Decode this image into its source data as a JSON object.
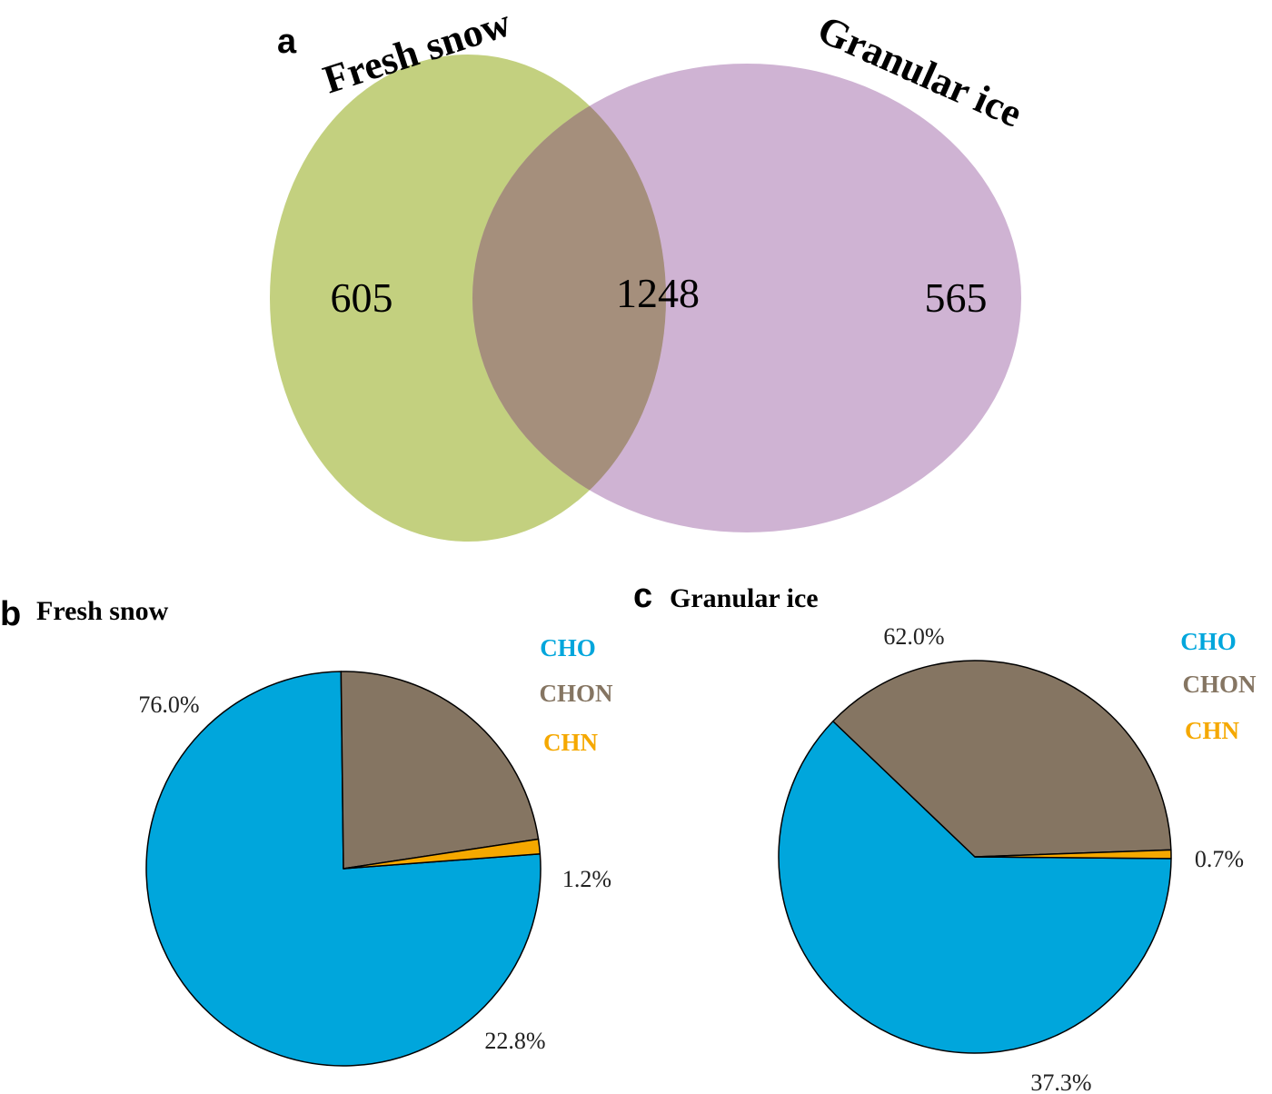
{
  "chart_data": [
    {
      "type": "venn",
      "panel": "a",
      "sets": [
        {
          "name": "Fresh snow",
          "color": "#b4c45f",
          "only": 605
        },
        {
          "name": "Granular ice",
          "color": "#c3a0c8",
          "only": 565
        }
      ],
      "intersection": 1248,
      "intersection_color": "#a58f7c"
    },
    {
      "type": "pie",
      "panel": "b",
      "title": "Fresh snow",
      "legend": [
        "CHO",
        "CHON",
        "CHN"
      ],
      "slices": [
        {
          "label": "CHO",
          "value": 76.0,
          "display": "76.0%",
          "color": "#00a6dc"
        },
        {
          "label": "CHON",
          "value": 22.8,
          "display": "22.8%",
          "color": "#857562"
        },
        {
          "label": "CHN",
          "value": 1.2,
          "display": "1.2%",
          "color": "#f5a800"
        }
      ]
    },
    {
      "type": "pie",
      "panel": "c",
      "title": "Granular ice",
      "legend": [
        "CHO",
        "CHON",
        "CHN"
      ],
      "slices": [
        {
          "label": "CHO",
          "value": 62.0,
          "display": "62.0%",
          "color": "#00a6dc"
        },
        {
          "label": "CHON",
          "value": 37.3,
          "display": "37.3%",
          "color": "#857562"
        },
        {
          "label": "CHN",
          "value": 0.7,
          "display": "0.7%",
          "color": "#f5a800"
        }
      ]
    }
  ]
}
